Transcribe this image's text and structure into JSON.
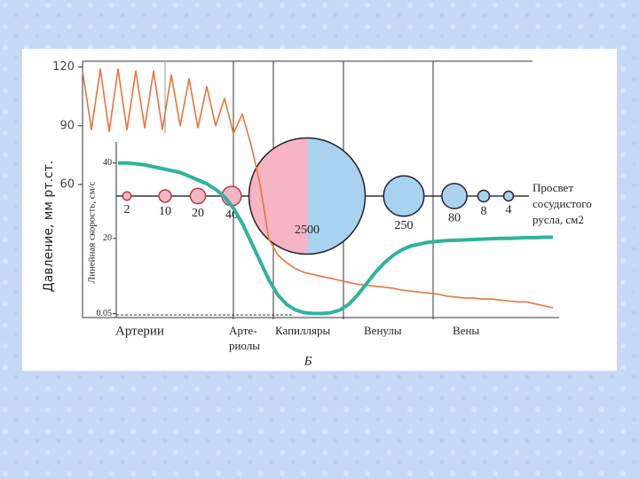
{
  "chart_data": {
    "type": "line",
    "y_label": "Давление, мм рт.ст.",
    "y2_label": "Линейная скорость, см/с",
    "right_label_lines": [
      "Просвет",
      "сосудистого",
      "русла, см2"
    ],
    "footer": "Б",
    "sections": [
      [
        "Артерии"
      ],
      [
        "Арте-",
        "риолы"
      ],
      [
        "Капилляры"
      ],
      [
        "Венулы"
      ],
      [
        "Вены"
      ]
    ],
    "ylim": [
      -8,
      123
    ],
    "yticks": [
      60,
      90,
      120
    ],
    "y2lim": [
      -1,
      67
    ],
    "y2ticks": [
      0.05,
      20,
      40
    ],
    "categories": [
      null,
      null,
      null,
      null,
      null,
      null,
      null,
      null,
      null,
      null,
      null,
      null,
      null,
      null,
      null,
      null,
      null,
      null,
      null,
      null,
      null,
      null,
      null,
      null,
      null,
      null,
      null,
      null,
      null,
      null,
      null,
      null,
      null,
      null,
      null,
      null,
      null,
      null,
      null,
      null,
      null,
      null,
      null,
      null,
      null,
      null,
      null,
      null,
      null,
      null,
      null,
      null,
      null,
      null
    ],
    "series": [
      {
        "color": "#e8743b",
        "values": [
          118,
          88,
          119,
          87,
          119,
          88,
          118,
          89,
          118,
          88,
          116,
          90,
          114,
          89,
          110,
          90,
          104,
          86,
          96,
          80,
          60,
          32,
          24,
          20,
          17,
          15,
          14,
          13,
          12,
          11,
          10,
          9,
          8.5,
          8,
          7.5,
          7,
          6,
          5.5,
          5,
          4.5,
          4,
          3,
          2.5,
          2,
          2,
          1.5,
          1.5,
          1,
          0.5,
          0,
          0,
          -1,
          -2,
          -3
        ]
      },
      {
        "color": "#2fb39a",
        "axis": "y2",
        "values": [
          null,
          null,
          null,
          null,
          40,
          40,
          39.8,
          39.5,
          39,
          38.5,
          38,
          37.5,
          36.5,
          35.5,
          34.5,
          33,
          31,
          28,
          24,
          19,
          14,
          9,
          5,
          2.5,
          1,
          0.3,
          0.1,
          0.1,
          0.3,
          1,
          2.5,
          5,
          8,
          11,
          13.5,
          15.5,
          17,
          18,
          18.5,
          19,
          19.2,
          19.4,
          19.5,
          19.6,
          19.7,
          19.8,
          19.9,
          20,
          20,
          20.1,
          20.2,
          20.2,
          20.3,
          20.3
        ]
      }
    ],
    "bubbles": {
      "values": [
        2,
        10,
        20,
        40,
        2500,
        250,
        80,
        8,
        4
      ],
      "colors": [
        "#f4b6c2",
        "#f4b6c2",
        "#f4b6c2",
        "#f4b6c2",
        "#a8d2f0",
        "#a8d2f0",
        "#a8d2f0",
        "#a8d2f0",
        "#a8d2f0"
      ],
      "split_color": "#f6b4c4"
    }
  }
}
